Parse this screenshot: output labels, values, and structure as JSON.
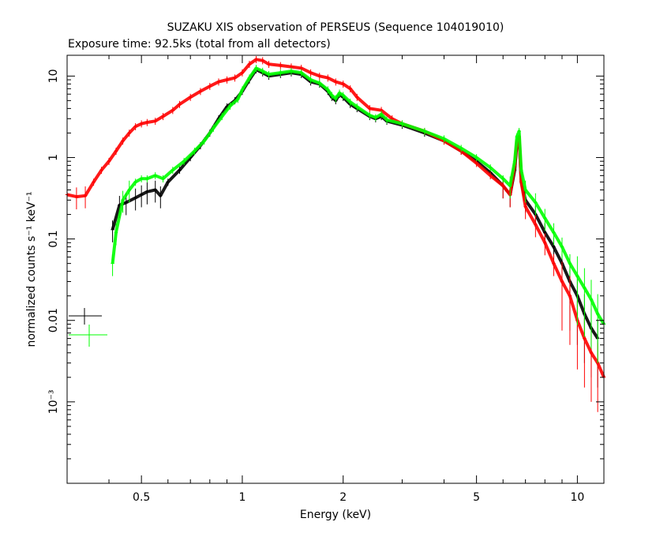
{
  "chart_data": {
    "type": "scatter",
    "title": "SUZAKU XIS observation of PERSEUS (Sequence 104019010)",
    "subtitle": "Exposure time: 92.5ks (total from all detectors)",
    "xlabel": "Energy (keV)",
    "ylabel": "normalized counts s⁻¹ keV⁻¹",
    "x_scale": "log",
    "y_scale": "log",
    "xlim": [
      0.3,
      12.0
    ],
    "ylim": [
      0.0001,
      18.0
    ],
    "x_ticks": [
      {
        "value": 0.5,
        "label": "0.5"
      },
      {
        "value": 1,
        "label": "1"
      },
      {
        "value": 2,
        "label": "2"
      },
      {
        "value": 5,
        "label": "5"
      },
      {
        "value": 10,
        "label": "10"
      }
    ],
    "y_ticks": [
      {
        "value": 10,
        "label": "10"
      },
      {
        "value": 1,
        "label": "1"
      },
      {
        "value": 0.1,
        "label": "0.1"
      },
      {
        "value": 0.01,
        "label": "0.01"
      },
      {
        "value": 0.001,
        "label": "10⁻³"
      }
    ],
    "grid": false,
    "series": [
      {
        "color": "#000000",
        "points": [
          [
            0.41,
            0.13
          ],
          [
            0.43,
            0.26
          ],
          [
            0.45,
            0.28
          ],
          [
            0.48,
            0.32
          ],
          [
            0.5,
            0.35
          ],
          [
            0.52,
            0.38
          ],
          [
            0.55,
            0.4
          ],
          [
            0.57,
            0.34
          ],
          [
            0.6,
            0.5
          ],
          [
            0.65,
            0.7
          ],
          [
            0.7,
            1.0
          ],
          [
            0.75,
            1.4
          ],
          [
            0.8,
            2.0
          ],
          [
            0.85,
            3.0
          ],
          [
            0.9,
            4.2
          ],
          [
            0.95,
            5.0
          ],
          [
            1.0,
            6.5
          ],
          [
            1.05,
            9.0
          ],
          [
            1.1,
            12.0
          ],
          [
            1.15,
            11.0
          ],
          [
            1.2,
            10.0
          ],
          [
            1.3,
            10.5
          ],
          [
            1.4,
            11.0
          ],
          [
            1.5,
            10.5
          ],
          [
            1.6,
            8.5
          ],
          [
            1.7,
            8.0
          ],
          [
            1.8,
            6.5
          ],
          [
            1.85,
            5.5
          ],
          [
            1.9,
            5.0
          ],
          [
            1.95,
            6.0
          ],
          [
            2.0,
            5.5
          ],
          [
            2.1,
            4.5
          ],
          [
            2.2,
            4.0
          ],
          [
            2.4,
            3.2
          ],
          [
            2.5,
            3.0
          ],
          [
            2.6,
            3.2
          ],
          [
            2.7,
            2.8
          ],
          [
            3.0,
            2.5
          ],
          [
            3.5,
            2.0
          ],
          [
            4.0,
            1.6
          ],
          [
            4.5,
            1.2
          ],
          [
            5.0,
            0.9
          ],
          [
            5.5,
            0.65
          ],
          [
            6.0,
            0.45
          ],
          [
            6.3,
            0.35
          ],
          [
            6.5,
            0.7
          ],
          [
            6.6,
            1.5
          ],
          [
            6.7,
            1.8
          ],
          [
            6.8,
            0.5
          ],
          [
            7.0,
            0.3
          ],
          [
            7.5,
            0.2
          ],
          [
            8.0,
            0.12
          ],
          [
            8.5,
            0.08
          ],
          [
            9.0,
            0.05
          ],
          [
            9.5,
            0.03
          ],
          [
            10.0,
            0.02
          ],
          [
            10.5,
            0.012
          ],
          [
            11.0,
            0.008
          ],
          [
            11.5,
            0.006
          ]
        ]
      },
      {
        "color": "#ff0000",
        "points": [
          [
            0.3,
            0.35
          ],
          [
            0.32,
            0.33
          ],
          [
            0.34,
            0.34
          ],
          [
            0.36,
            0.5
          ],
          [
            0.38,
            0.7
          ],
          [
            0.4,
            0.9
          ],
          [
            0.42,
            1.2
          ],
          [
            0.44,
            1.6
          ],
          [
            0.46,
            2.0
          ],
          [
            0.48,
            2.4
          ],
          [
            0.5,
            2.6
          ],
          [
            0.52,
            2.7
          ],
          [
            0.55,
            2.8
          ],
          [
            0.58,
            3.2
          ],
          [
            0.62,
            3.8
          ],
          [
            0.65,
            4.5
          ],
          [
            0.7,
            5.5
          ],
          [
            0.75,
            6.5
          ],
          [
            0.8,
            7.5
          ],
          [
            0.85,
            8.5
          ],
          [
            0.9,
            9.0
          ],
          [
            0.95,
            9.5
          ],
          [
            1.0,
            11.0
          ],
          [
            1.05,
            14.0
          ],
          [
            1.1,
            16.0
          ],
          [
            1.15,
            15.5
          ],
          [
            1.2,
            14.0
          ],
          [
            1.3,
            13.5
          ],
          [
            1.4,
            13.0
          ],
          [
            1.5,
            12.5
          ],
          [
            1.6,
            11.0
          ],
          [
            1.7,
            10.0
          ],
          [
            1.8,
            9.5
          ],
          [
            1.9,
            8.5
          ],
          [
            2.0,
            8.0
          ],
          [
            2.1,
            7.0
          ],
          [
            2.2,
            5.5
          ],
          [
            2.4,
            4.0
          ],
          [
            2.6,
            3.8
          ],
          [
            2.8,
            3.0
          ],
          [
            3.0,
            2.6
          ],
          [
            3.5,
            2.1
          ],
          [
            4.0,
            1.6
          ],
          [
            4.5,
            1.2
          ],
          [
            5.0,
            0.85
          ],
          [
            5.5,
            0.6
          ],
          [
            6.0,
            0.45
          ],
          [
            6.3,
            0.35
          ],
          [
            6.5,
            0.8
          ],
          [
            6.6,
            1.6
          ],
          [
            6.7,
            1.8
          ],
          [
            6.8,
            0.5
          ],
          [
            7.0,
            0.25
          ],
          [
            7.5,
            0.15
          ],
          [
            8.0,
            0.09
          ],
          [
            8.5,
            0.05
          ],
          [
            9.0,
            0.03
          ],
          [
            9.5,
            0.02
          ],
          [
            10.0,
            0.01
          ],
          [
            10.5,
            0.006
          ],
          [
            11.0,
            0.004
          ],
          [
            11.5,
            0.003
          ],
          [
            12.0,
            0.002
          ]
        ]
      },
      {
        "color": "#00ff00",
        "points": [
          [
            0.41,
            0.05
          ],
          [
            0.42,
            0.12
          ],
          [
            0.44,
            0.3
          ],
          [
            0.46,
            0.4
          ],
          [
            0.48,
            0.5
          ],
          [
            0.5,
            0.55
          ],
          [
            0.52,
            0.55
          ],
          [
            0.55,
            0.6
          ],
          [
            0.58,
            0.55
          ],
          [
            0.62,
            0.7
          ],
          [
            0.67,
            0.9
          ],
          [
            0.72,
            1.2
          ],
          [
            0.77,
            1.6
          ],
          [
            0.82,
            2.3
          ],
          [
            0.87,
            3.2
          ],
          [
            0.92,
            4.3
          ],
          [
            0.97,
            5.2
          ],
          [
            1.0,
            6.8
          ],
          [
            1.05,
            9.5
          ],
          [
            1.1,
            12.5
          ],
          [
            1.15,
            11.5
          ],
          [
            1.2,
            10.5
          ],
          [
            1.3,
            11.0
          ],
          [
            1.4,
            11.5
          ],
          [
            1.5,
            11.0
          ],
          [
            1.6,
            9.0
          ],
          [
            1.7,
            8.2
          ],
          [
            1.8,
            6.8
          ],
          [
            1.85,
            5.8
          ],
          [
            1.9,
            5.3
          ],
          [
            1.95,
            6.2
          ],
          [
            2.0,
            5.8
          ],
          [
            2.1,
            4.8
          ],
          [
            2.2,
            4.2
          ],
          [
            2.4,
            3.3
          ],
          [
            2.5,
            3.1
          ],
          [
            2.6,
            3.4
          ],
          [
            2.7,
            2.9
          ],
          [
            3.0,
            2.6
          ],
          [
            3.5,
            2.1
          ],
          [
            4.0,
            1.7
          ],
          [
            4.5,
            1.3
          ],
          [
            5.0,
            1.0
          ],
          [
            5.5,
            0.75
          ],
          [
            6.0,
            0.55
          ],
          [
            6.3,
            0.45
          ],
          [
            6.5,
            0.9
          ],
          [
            6.6,
            1.8
          ],
          [
            6.7,
            2.1
          ],
          [
            6.8,
            0.7
          ],
          [
            7.0,
            0.4
          ],
          [
            7.5,
            0.28
          ],
          [
            8.0,
            0.18
          ],
          [
            8.5,
            0.12
          ],
          [
            9.0,
            0.08
          ],
          [
            9.5,
            0.05
          ],
          [
            10.0,
            0.035
          ],
          [
            10.5,
            0.025
          ],
          [
            11.0,
            0.018
          ],
          [
            11.5,
            0.012
          ],
          [
            12.0,
            0.009
          ]
        ]
      }
    ]
  }
}
